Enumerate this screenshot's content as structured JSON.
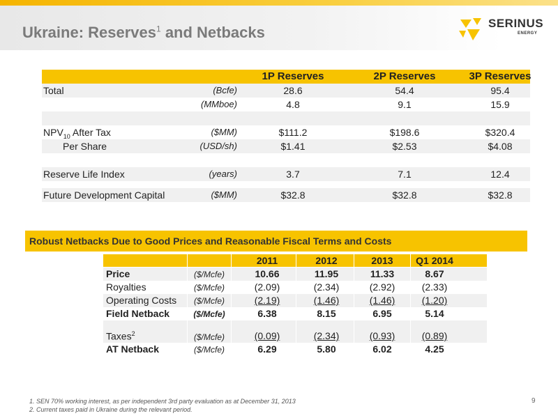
{
  "title": {
    "text": "Ukraine: Reserves",
    "sup": "1",
    "rest": " and Netbacks"
  },
  "logo": {
    "name": "SERINUS",
    "sub": "ENERGY",
    "accent": "#f7c300"
  },
  "reserves": {
    "columns": [
      "1P Reserves",
      "2P Reserves",
      "3P Reserves"
    ],
    "rows": [
      {
        "label": "Total",
        "unit": "(Bcfe)",
        "values": [
          "28.6",
          "54.4",
          "95.4"
        ]
      },
      {
        "label": "",
        "unit": "(MMboe)",
        "values": [
          "4.8",
          "9.1",
          "15.9"
        ]
      },
      {
        "label": "NPV10 After Tax",
        "unit": "($MM)",
        "values": [
          "$111.2",
          "$198.6",
          "$320.4"
        ]
      },
      {
        "label": "Per Share",
        "unit": "(USD/sh)",
        "values": [
          "$1.41",
          "$2.53",
          "$4.08"
        ]
      },
      {
        "label": "Reserve Life Index",
        "unit": "(years)",
        "values": [
          "3.7",
          "7.1",
          "12.4"
        ]
      },
      {
        "label": "Future Development Capital",
        "unit": "($MM)",
        "values": [
          "$32.8",
          "$32.8",
          "$32.8"
        ]
      }
    ]
  },
  "netbacks": {
    "banner": "Robust Netbacks Due to Good Prices and Reasonable Fiscal Terms and Costs",
    "columns": [
      "2011",
      "2012",
      "2013",
      "Q1 2014"
    ],
    "rows": [
      {
        "label": "Price",
        "unit": "($/Mcfe)",
        "values": [
          "10.66",
          "11.95",
          "11.33",
          "8.67"
        ]
      },
      {
        "label": "Royalties",
        "unit": "($/Mcfe)",
        "values": [
          "(2.09)",
          "(2.34)",
          "(2.92)",
          "(2.33)"
        ]
      },
      {
        "label": "Operating Costs",
        "unit": "($/Mcfe)",
        "values": [
          "(2.19)",
          "(1.46)",
          "(1.46)",
          "(1.20)"
        ]
      },
      {
        "label": "Field Netback",
        "unit": "($/Mcfe)",
        "values": [
          "6.38",
          "8.15",
          "6.95",
          "5.14"
        ]
      },
      {
        "label": "Taxes",
        "sup": "2",
        "unit": "($/Mcfe)",
        "values": [
          "(0.09)",
          "(2.34)",
          "(0.93)",
          "(0.89)"
        ]
      },
      {
        "label": "AT Netback",
        "unit": "($/Mcfe)",
        "values": [
          "6.29",
          "5.80",
          "6.02",
          "4.25"
        ]
      }
    ]
  },
  "footnotes": [
    "1.    SEN 70% working interest, as per independent 3rd party evaluation as at December 31, 2013",
    "2.    Current taxes paid in Ukraine during the relevant period."
  ],
  "page_number": "9"
}
